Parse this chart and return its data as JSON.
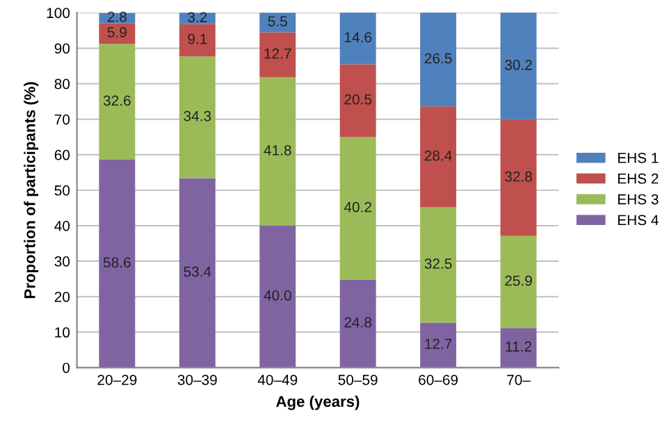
{
  "chart_data": {
    "type": "bar",
    "stacked": true,
    "xlabel": "Age (years)",
    "ylabel": "Proportion of participants (%)",
    "categories": [
      "20–29",
      "30–39",
      "40–49",
      "50–59",
      "60–69",
      "70–"
    ],
    "series": [
      {
        "name": "EHS 4",
        "color": "#8064a2",
        "values": [
          58.6,
          53.4,
          40.0,
          24.8,
          12.7,
          11.2
        ],
        "value_labels": [
          "58.6",
          "53.4",
          "40.0",
          "24.8",
          "12.7",
          "11.2"
        ]
      },
      {
        "name": "EHS 3",
        "color": "#9bbb59",
        "values": [
          32.6,
          34.3,
          41.8,
          40.2,
          32.5,
          25.9
        ],
        "value_labels": [
          "32.6",
          "34.3",
          "41.8",
          "40.2",
          "32.5",
          "25.9"
        ]
      },
      {
        "name": "EHS 2",
        "color": "#c0504d",
        "values": [
          5.9,
          9.1,
          12.7,
          20.5,
          28.4,
          32.8
        ],
        "value_labels": [
          "5.9",
          "9.1",
          "12.7",
          "20.5",
          "28.4",
          "32.8"
        ]
      },
      {
        "name": "EHS 1",
        "color": "#4f81bd",
        "values": [
          2.8,
          3.2,
          5.5,
          14.6,
          26.5,
          30.2
        ],
        "value_labels": [
          "2.8",
          "3.2",
          "5.5",
          "14.6",
          "26.5",
          "30.2"
        ]
      }
    ],
    "ylim": [
      0,
      100
    ],
    "yticks": [
      0,
      10,
      20,
      30,
      40,
      50,
      60,
      70,
      80,
      90,
      100
    ],
    "grid": "y",
    "legend": "right"
  }
}
